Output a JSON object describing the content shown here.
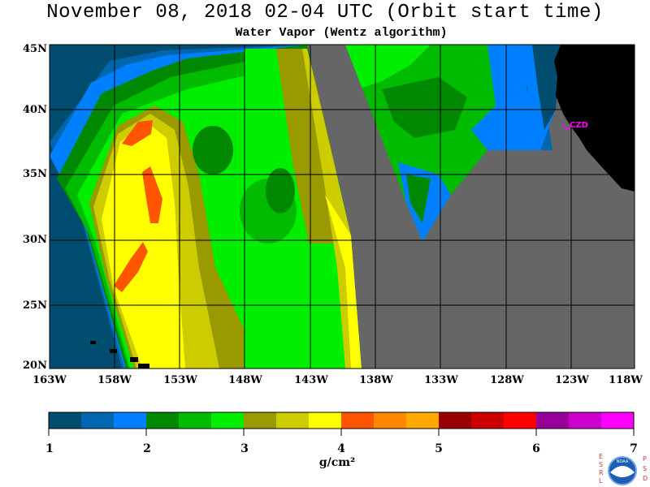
{
  "header": {
    "title": "November 08, 2018  02-04 UTC  (Orbit start time)",
    "subtitle": "Water Vapor (Wentz algorithm)"
  },
  "map": {
    "lat_labels": [
      "45N",
      "40N",
      "35N",
      "30N",
      "25N",
      "20N"
    ],
    "lon_labels": [
      "163W",
      "158W",
      "153W",
      "148W",
      "143W",
      "138W",
      "133W",
      "128W",
      "123W",
      "118W"
    ],
    "station_label": "CZD",
    "colors": {
      "no_data": "#666666",
      "land": "#000000",
      "grid": "#000000",
      "station": "#ff00ff"
    }
  },
  "colorbar": {
    "ticks": [
      "1",
      "2",
      "3",
      "4",
      "5",
      "6",
      "7"
    ],
    "units": "g/cm²",
    "colors": [
      "#004d70",
      "#0066b0",
      "#0080ff",
      "#008800",
      "#00bb00",
      "#00ee00",
      "#999900",
      "#cccc00",
      "#ffff00",
      "#ff5500",
      "#ff8800",
      "#ffaa00",
      "#990000",
      "#cc0000",
      "#ff0000",
      "#990099",
      "#cc00cc",
      "#ff00ff"
    ]
  },
  "logo": {
    "left_letters": [
      "E",
      "S",
      "R",
      "L"
    ],
    "right_letters": [
      "P",
      "S",
      "D"
    ],
    "emblem_text": "NOAA"
  }
}
